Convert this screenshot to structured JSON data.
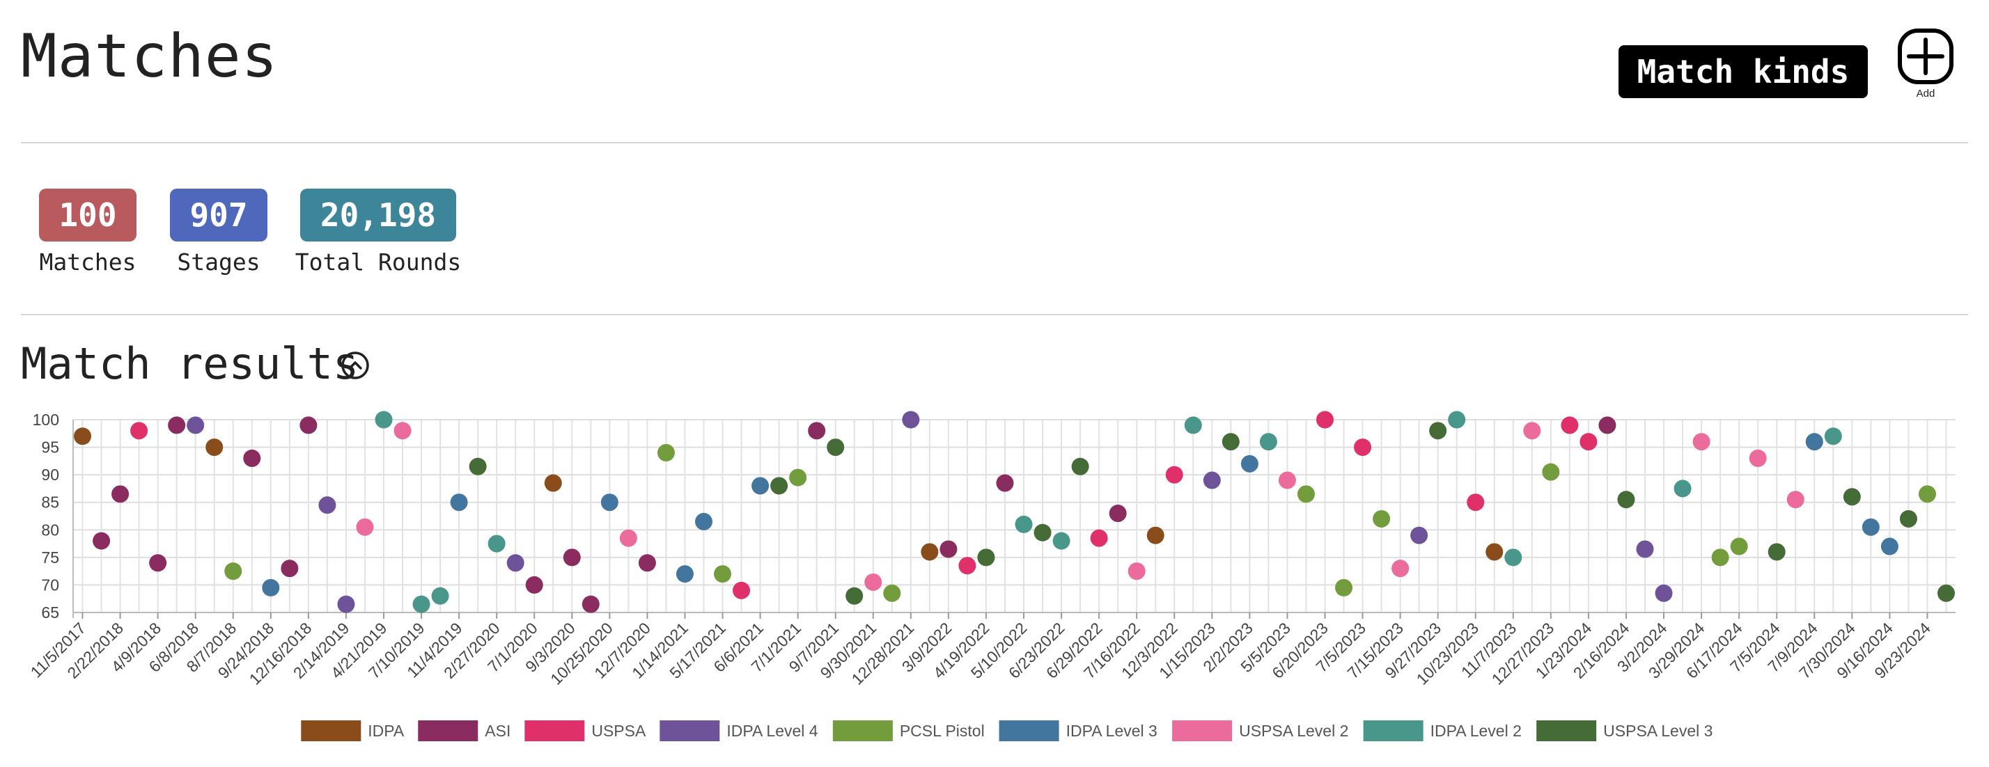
{
  "header": {
    "title": "Matches",
    "match_kinds_label": "Match kinds",
    "add_label": "Add"
  },
  "stats": [
    {
      "value": "100",
      "label": "Matches",
      "color": "#b95a5f"
    },
    {
      "value": "907",
      "label": "Stages",
      "color": "#4f68bb"
    },
    {
      "value": "20,198",
      "label": "Total Rounds",
      "color": "#3d8598"
    }
  ],
  "results": {
    "title": "Match results",
    "collapse_icon": "chevron-up-circle-icon"
  },
  "chart_data": {
    "type": "scatter",
    "title": "",
    "xlabel": "",
    "ylabel": "",
    "ylim": [
      65,
      100
    ],
    "yticks": [
      65,
      70,
      75,
      80,
      85,
      90,
      95,
      100
    ],
    "grid": true,
    "legend_position": "bottom",
    "x_tick_labels": [
      "11/5/2017",
      "2/22/2018",
      "4/9/2018",
      "6/8/2018",
      "8/7/2018",
      "9/24/2018",
      "12/16/2018",
      "2/14/2019",
      "4/21/2019",
      "7/10/2019",
      "11/4/2019",
      "2/27/2020",
      "7/1/2020",
      "9/3/2020",
      "10/25/2020",
      "12/7/2020",
      "1/14/2021",
      "5/17/2021",
      "6/6/2021",
      "7/1/2021",
      "9/7/2021",
      "9/30/2021",
      "12/28/2021",
      "3/9/2022",
      "4/19/2022",
      "5/10/2022",
      "6/23/2022",
      "6/29/2022",
      "7/16/2022",
      "12/3/2022",
      "1/15/2023",
      "2/2/2023",
      "5/5/2023",
      "6/20/2023",
      "7/5/2023",
      "7/15/2023",
      "9/27/2023",
      "10/23/2023",
      "11/7/2023",
      "12/27/2023",
      "1/23/2024",
      "2/16/2024",
      "3/2/2024",
      "3/29/2024",
      "6/17/2024",
      "7/5/2024",
      "7/9/2024",
      "7/30/2024",
      "9/16/2024",
      "9/23/2024"
    ],
    "series": [
      {
        "name": "IDPA",
        "color": "#8b4c1c"
      },
      {
        "name": "ASI",
        "color": "#8a2c5f"
      },
      {
        "name": "USPSA",
        "color": "#e0306a"
      },
      {
        "name": "IDPA Level 4",
        "color": "#6e529a"
      },
      {
        "name": "PCSL Pistol",
        "color": "#739c3c"
      },
      {
        "name": "IDPA Level 3",
        "color": "#43769e"
      },
      {
        "name": "USPSA Level 2",
        "color": "#ea6b9c"
      },
      {
        "name": "IDPA Level 2",
        "color": "#48978a"
      },
      {
        "name": "USPSA Level 3",
        "color": "#456b37"
      }
    ],
    "points": [
      {
        "i": 0,
        "y": 97,
        "s": 0
      },
      {
        "i": 1,
        "y": 78,
        "s": 1
      },
      {
        "i": 2,
        "y": 86.5,
        "s": 1
      },
      {
        "i": 3,
        "y": 98,
        "s": 2
      },
      {
        "i": 4,
        "y": 74,
        "s": 1
      },
      {
        "i": 5,
        "y": 99,
        "s": 1
      },
      {
        "i": 6,
        "y": 99,
        "s": 3
      },
      {
        "i": 7,
        "y": 95,
        "s": 0
      },
      {
        "i": 8,
        "y": 72.5,
        "s": 4
      },
      {
        "i": 9,
        "y": 93,
        "s": 1
      },
      {
        "i": 10,
        "y": 69.5,
        "s": 5
      },
      {
        "i": 11,
        "y": 73,
        "s": 1
      },
      {
        "i": 12,
        "y": 99,
        "s": 1
      },
      {
        "i": 13,
        "y": 84.5,
        "s": 3
      },
      {
        "i": 14,
        "y": 66.5,
        "s": 3
      },
      {
        "i": 15,
        "y": 80.5,
        "s": 6
      },
      {
        "i": 16,
        "y": 100,
        "s": 7
      },
      {
        "i": 17,
        "y": 98,
        "s": 6
      },
      {
        "i": 18,
        "y": 66.5,
        "s": 7
      },
      {
        "i": 19,
        "y": 68,
        "s": 7
      },
      {
        "i": 20,
        "y": 85,
        "s": 5
      },
      {
        "i": 21,
        "y": 91.5,
        "s": 8
      },
      {
        "i": 22,
        "y": 77.5,
        "s": 7
      },
      {
        "i": 23,
        "y": 74,
        "s": 3
      },
      {
        "i": 24,
        "y": 70,
        "s": 1
      },
      {
        "i": 25,
        "y": 88.5,
        "s": 0
      },
      {
        "i": 26,
        "y": 75,
        "s": 1
      },
      {
        "i": 27,
        "y": 66.5,
        "s": 1
      },
      {
        "i": 28,
        "y": 85,
        "s": 5
      },
      {
        "i": 29,
        "y": 78.5,
        "s": 6
      },
      {
        "i": 30,
        "y": 74,
        "s": 1
      },
      {
        "i": 31,
        "y": 94,
        "s": 4
      },
      {
        "i": 32,
        "y": 72,
        "s": 5
      },
      {
        "i": 33,
        "y": 81.5,
        "s": 5
      },
      {
        "i": 34,
        "y": 72,
        "s": 4
      },
      {
        "i": 35,
        "y": 69,
        "s": 2
      },
      {
        "i": 36,
        "y": 88,
        "s": 5
      },
      {
        "i": 37,
        "y": 88,
        "s": 8
      },
      {
        "i": 38,
        "y": 89.5,
        "s": 4
      },
      {
        "i": 39,
        "y": 98,
        "s": 1
      },
      {
        "i": 40,
        "y": 95,
        "s": 8
      },
      {
        "i": 41,
        "y": 68,
        "s": 8
      },
      {
        "i": 42,
        "y": 70.5,
        "s": 6
      },
      {
        "i": 43,
        "y": 68.5,
        "s": 4
      },
      {
        "i": 44,
        "y": 100,
        "s": 3
      },
      {
        "i": 45,
        "y": 76,
        "s": 0
      },
      {
        "i": 46,
        "y": 76.5,
        "s": 1
      },
      {
        "i": 47,
        "y": 73.5,
        "s": 2
      },
      {
        "i": 48,
        "y": 75,
        "s": 8
      },
      {
        "i": 49,
        "y": 88.5,
        "s": 1
      },
      {
        "i": 50,
        "y": 81,
        "s": 7
      },
      {
        "i": 51,
        "y": 79.5,
        "s": 8
      },
      {
        "i": 52,
        "y": 78,
        "s": 7
      },
      {
        "i": 53,
        "y": 91.5,
        "s": 8
      },
      {
        "i": 54,
        "y": 78.5,
        "s": 2
      },
      {
        "i": 55,
        "y": 83,
        "s": 1
      },
      {
        "i": 56,
        "y": 72.5,
        "s": 6
      },
      {
        "i": 57,
        "y": 79,
        "s": 0
      },
      {
        "i": 58,
        "y": 90,
        "s": 2
      },
      {
        "i": 59,
        "y": 99,
        "s": 7
      },
      {
        "i": 60,
        "y": 89,
        "s": 3
      },
      {
        "i": 61,
        "y": 96,
        "s": 8
      },
      {
        "i": 62,
        "y": 92,
        "s": 5
      },
      {
        "i": 63,
        "y": 96,
        "s": 7
      },
      {
        "i": 64,
        "y": 89,
        "s": 6
      },
      {
        "i": 65,
        "y": 86.5,
        "s": 4
      },
      {
        "i": 66,
        "y": 100,
        "s": 2
      },
      {
        "i": 67,
        "y": 69.5,
        "s": 4
      },
      {
        "i": 68,
        "y": 95,
        "s": 2
      },
      {
        "i": 69,
        "y": 82,
        "s": 4
      },
      {
        "i": 70,
        "y": 73,
        "s": 6
      },
      {
        "i": 71,
        "y": 79,
        "s": 3
      },
      {
        "i": 72,
        "y": 98,
        "s": 8
      },
      {
        "i": 73,
        "y": 100,
        "s": 7
      },
      {
        "i": 74,
        "y": 85,
        "s": 2
      },
      {
        "i": 75,
        "y": 76,
        "s": 0
      },
      {
        "i": 76,
        "y": 75,
        "s": 7
      },
      {
        "i": 77,
        "y": 98,
        "s": 6
      },
      {
        "i": 78,
        "y": 90.5,
        "s": 4
      },
      {
        "i": 79,
        "y": 99,
        "s": 2
      },
      {
        "i": 80,
        "y": 96,
        "s": 2
      },
      {
        "i": 81,
        "y": 99,
        "s": 1
      },
      {
        "i": 82,
        "y": 85.5,
        "s": 8
      },
      {
        "i": 83,
        "y": 76.5,
        "s": 3
      },
      {
        "i": 84,
        "y": 68.5,
        "s": 3
      },
      {
        "i": 85,
        "y": 87.5,
        "s": 7
      },
      {
        "i": 86,
        "y": 96,
        "s": 6
      },
      {
        "i": 87,
        "y": 75,
        "s": 4
      },
      {
        "i": 88,
        "y": 77,
        "s": 4
      },
      {
        "i": 89,
        "y": 93,
        "s": 6
      },
      {
        "i": 90,
        "y": 76,
        "s": 8
      },
      {
        "i": 91,
        "y": 85.5,
        "s": 6
      },
      {
        "i": 92,
        "y": 96,
        "s": 5
      },
      {
        "i": 93,
        "y": 97,
        "s": 7
      },
      {
        "i": 94,
        "y": 86,
        "s": 8
      },
      {
        "i": 95,
        "y": 80.5,
        "s": 5
      },
      {
        "i": 96,
        "y": 77,
        "s": 5
      },
      {
        "i": 97,
        "y": 82,
        "s": 8
      },
      {
        "i": 98,
        "y": 86.5,
        "s": 4
      },
      {
        "i": 99,
        "y": 68.5,
        "s": 8
      }
    ]
  }
}
